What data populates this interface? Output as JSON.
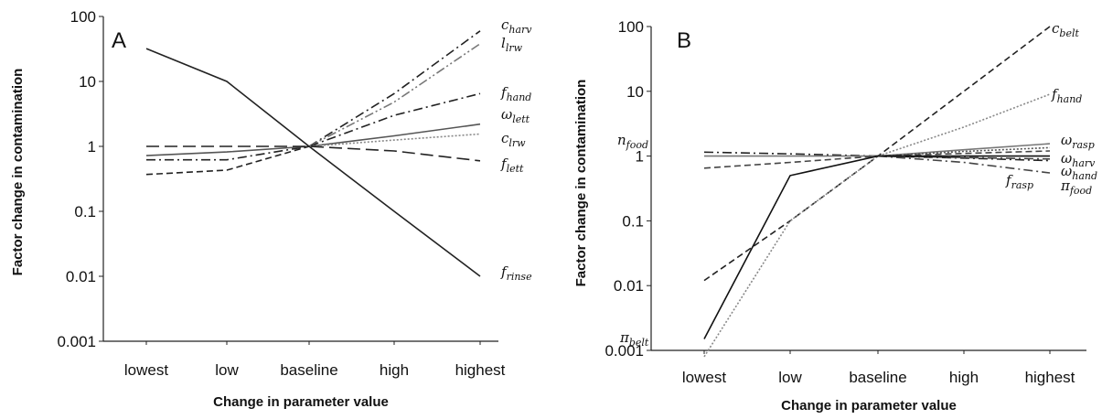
{
  "chart_data": [
    {
      "type": "line",
      "panel_label": "A",
      "categories": [
        "lowest",
        "low",
        "baseline",
        "high",
        "highest"
      ],
      "xlabel": "Change in parameter value",
      "ylabel": "Factor change in contamination",
      "yscale": "log",
      "ylim": [
        0.001,
        100
      ],
      "yticks": [
        "0.001",
        "0.01",
        "0.1",
        "1",
        "10",
        "100"
      ],
      "grid": false,
      "legend": "none (series labelled at line ends)",
      "series": [
        {
          "name": "c",
          "sub": "harv",
          "values": [
            null,
            null,
            1,
            6.5,
            60
          ],
          "dash": "dashdot",
          "color": "#222222"
        },
        {
          "name": "l",
          "sub": "lrw",
          "values": [
            null,
            null,
            1,
            4.8,
            38
          ],
          "dash": "dashdotdot",
          "color": "#777777"
        },
        {
          "name": "f",
          "sub": "hand",
          "values": [
            0.62,
            0.62,
            1,
            3.0,
            6.5
          ],
          "dash": "dashdot",
          "color": "#222222"
        },
        {
          "name": "ω",
          "sub": "lett",
          "values": [
            0.72,
            0.82,
            1,
            1.45,
            2.2
          ],
          "dash": "solid",
          "color": "#555555"
        },
        {
          "name": "c",
          "sub": "lrw",
          "values": [
            null,
            null,
            1,
            1.25,
            1.55
          ],
          "dash": "dotted",
          "color": "#888888"
        },
        {
          "name": "f",
          "sub": "lett",
          "values": [
            1.0,
            1.0,
            1,
            0.85,
            0.6
          ],
          "dash": "longdash",
          "color": "#222222"
        },
        {
          "name": "",
          "sub": "",
          "values": [
            0.37,
            0.43,
            1,
            null,
            null
          ],
          "dash": "dash",
          "color": "#222222"
        },
        {
          "name": "f",
          "sub": "rinse",
          "values": [
            32,
            10,
            1,
            0.1,
            0.01
          ],
          "dash": "solid",
          "color": "#222222"
        }
      ]
    },
    {
      "type": "line",
      "panel_label": "B",
      "categories": [
        "lowest",
        "low",
        "baseline",
        "high",
        "highest"
      ],
      "xlabel": "Change in parameter value",
      "ylabel": "Factor change in contamination",
      "yscale": "log",
      "ylim": [
        0.001,
        100
      ],
      "yticks": [
        "0.001",
        "0.01",
        "0.1",
        "1",
        "10",
        "100"
      ],
      "grid": false,
      "legend": "none (series labelled at line ends)",
      "series": [
        {
          "name": "c",
          "sub": "belt",
          "values": [
            0.012,
            0.1,
            1,
            10,
            100
          ],
          "dash": "dash",
          "color": "#222222"
        },
        {
          "name": "f",
          "sub": "hand",
          "values": [
            0.0008,
            0.1,
            1,
            2.8,
            9
          ],
          "dash": "dotted",
          "color": "#888888"
        },
        {
          "name": "n",
          "sub": "food",
          "values": [
            1.15,
            1.08,
            1,
            0.93,
            0.85
          ],
          "dash": "dashdot",
          "color": "#222222"
        },
        {
          "name": "ω",
          "sub": "rasp",
          "values": [
            1.0,
            1.0,
            1,
            1.25,
            1.55
          ],
          "dash": "solid",
          "color": "#777777"
        },
        {
          "name": "ω",
          "sub": "harv",
          "values": [
            null,
            null,
            1,
            1.18,
            1.35
          ],
          "dash": "dotted",
          "color": "#555555"
        },
        {
          "name": "ω",
          "sub": "hand",
          "values": [
            0.65,
            0.8,
            1,
            1.1,
            1.2
          ],
          "dash": "dash",
          "color": "#444444"
        },
        {
          "name": "f",
          "sub": "rasp",
          "values": [
            null,
            null,
            1,
            0.95,
            0.9
          ],
          "dash": "dashdot",
          "color": "#444444"
        },
        {
          "name": "π",
          "sub": "food",
          "values": [
            null,
            null,
            1,
            0.8,
            0.55
          ],
          "dash": "dashdot",
          "color": "#444444"
        },
        {
          "name": "π",
          "sub": "belt",
          "values": [
            0.0015,
            0.5,
            1,
            1.0,
            1.0
          ],
          "dash": "solid",
          "color": "#111111"
        }
      ]
    }
  ]
}
